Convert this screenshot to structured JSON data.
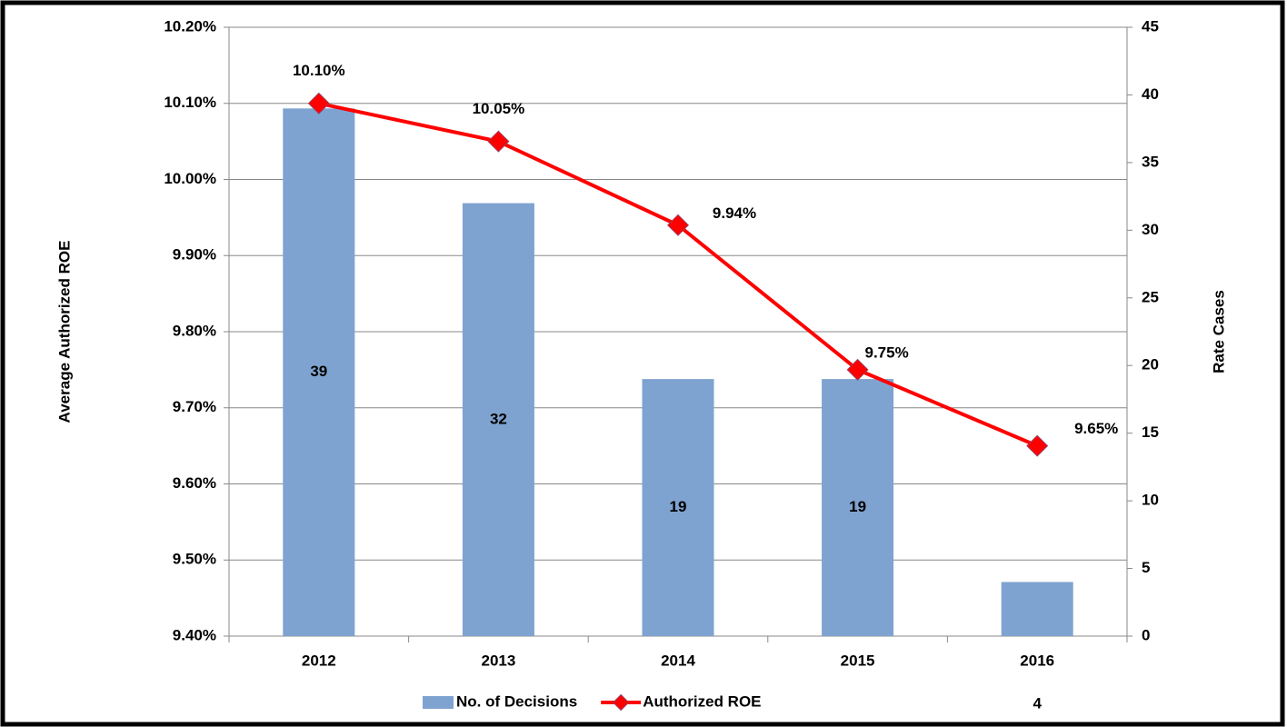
{
  "chart_data": {
    "type": "bar-line",
    "categories": [
      "2012",
      "2013",
      "2014",
      "2015",
      "2016"
    ],
    "series": [
      {
        "name": "No. of Decisions",
        "type": "bar",
        "axis": "y2",
        "color": "#7FA3D0",
        "values": [
          39,
          32,
          19,
          19,
          4
        ]
      },
      {
        "name": "Authorized ROE",
        "type": "line",
        "axis": "y",
        "color": "#FF0000",
        "values": [
          10.1,
          10.05,
          9.94,
          9.75,
          9.65
        ],
        "value_labels": [
          "10.10%",
          "10.05%",
          "9.94%",
          "9.75%",
          "9.65%"
        ]
      }
    ],
    "ylabel": "Average Authorized ROE",
    "y2label": "Rate Cases",
    "ylim": [
      9.4,
      10.2
    ],
    "yticks": [
      {
        "value": 9.4,
        "label": "9.40%"
      },
      {
        "value": 9.5,
        "label": "9.50%"
      },
      {
        "value": 9.6,
        "label": "9.60%"
      },
      {
        "value": 9.7,
        "label": "9.70%"
      },
      {
        "value": 9.8,
        "label": "9.80%"
      },
      {
        "value": 9.9,
        "label": "9.90%"
      },
      {
        "value": 10.0,
        "label": "10.00%"
      },
      {
        "value": 10.1,
        "label": "10.10%"
      },
      {
        "value": 10.2,
        "label": "10.20%"
      }
    ],
    "y2lim": [
      0,
      45
    ],
    "y2ticks": [
      0,
      5,
      10,
      15,
      20,
      25,
      30,
      35,
      40,
      45
    ],
    "grid": true,
    "legend": "bottom"
  }
}
